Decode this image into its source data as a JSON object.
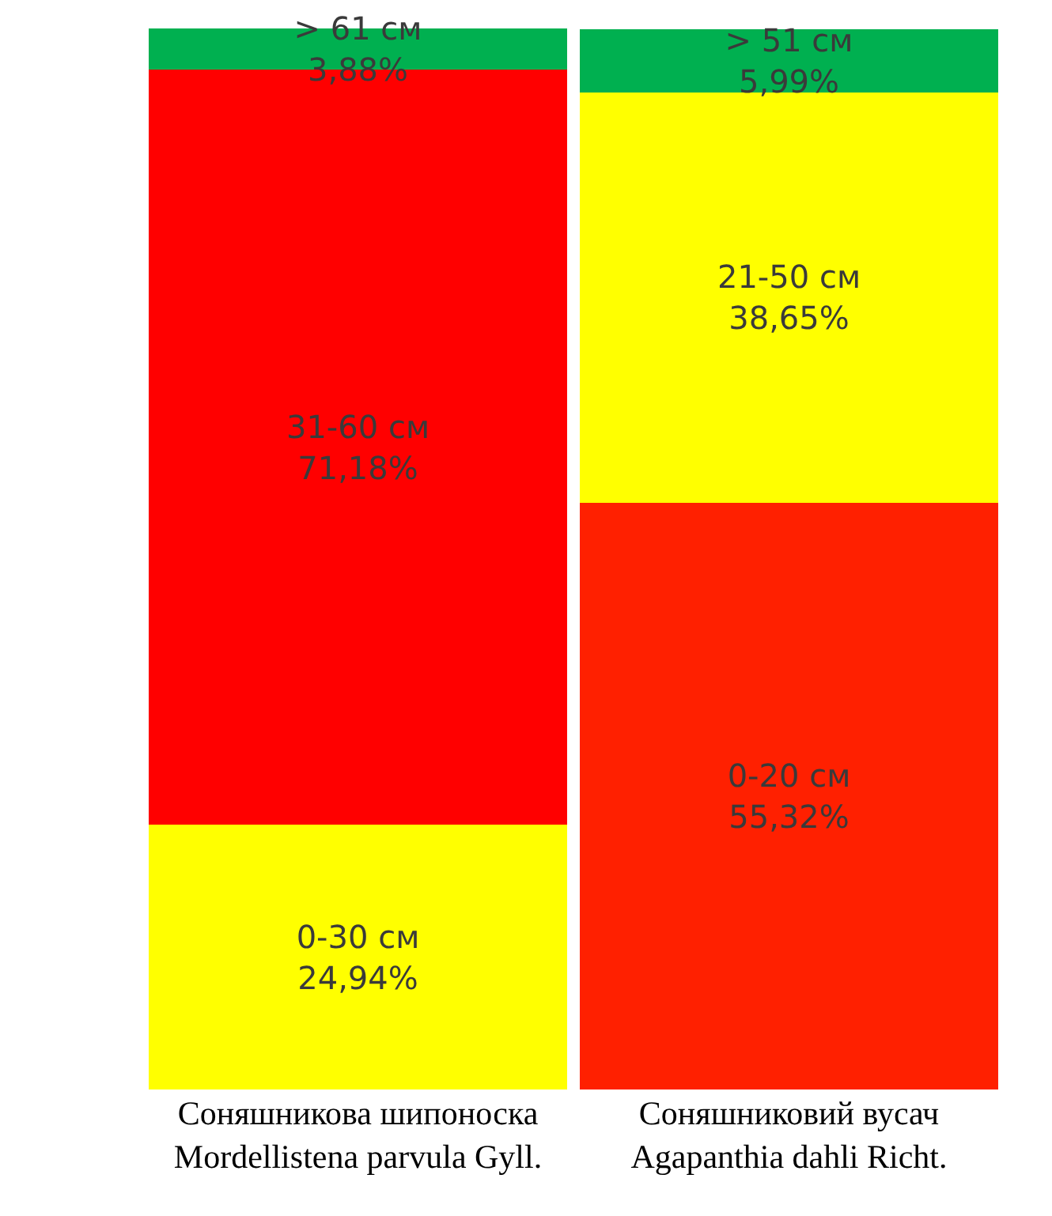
{
  "chart_data": {
    "type": "bar",
    "stacked": true,
    "categories": [
      "Соняшникова шипоноска\nMordellistena parvula Gyll.",
      "Соняшниковий вусач\nAgapanthia dahli Richt."
    ],
    "series": [
      {
        "colors": [
          "#ffff00",
          "#ff2000"
        ],
        "values": [
          24.94,
          55.32
        ],
        "value_labels": [
          "0-30 см\n24,94%",
          "0-20 см\n55,32%"
        ]
      },
      {
        "colors": [
          "#ff0000",
          "#ffff00"
        ],
        "values": [
          71.18,
          38.65
        ],
        "value_labels": [
          "31-60 см\n71,18%",
          "21-50 см\n38,65%"
        ]
      },
      {
        "colors": [
          "#00b050",
          "#00b050"
        ],
        "values": [
          3.88,
          5.99
        ],
        "value_labels": [
          "> 61 см\n3,88%",
          "> 51 см\n5,99%"
        ]
      }
    ],
    "ylim": [
      0,
      100
    ],
    "tick_labels": "x"
  }
}
